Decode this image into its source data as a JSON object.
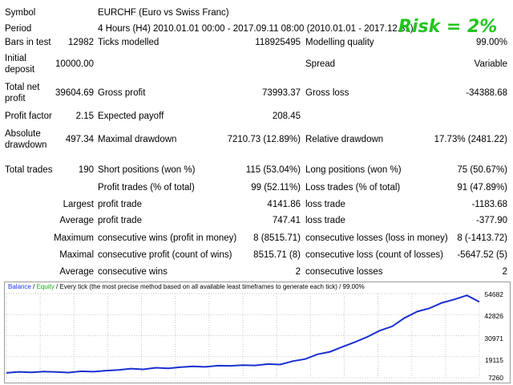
{
  "report": {
    "symbol": {
      "label": "Symbol",
      "value": "EURCHF (Euro vs Swiss Franc)"
    },
    "period": {
      "label": "Period",
      "value": "4 Hours (H4) 2010.01.01 00:00 - 2017.09.11 08:00 (2010.01.01 - 2017.12.31)"
    },
    "bars_in_test": {
      "label": "Bars in test",
      "value": "12982"
    },
    "ticks_modelled": {
      "label": "Ticks modelled",
      "value": "118925495"
    },
    "modelling_quality": {
      "label": "Modelling quality",
      "value": "99.00%"
    },
    "initial_deposit": {
      "label_line1": "Initial",
      "label_line2": "deposit",
      "value": "10000.00"
    },
    "spread": {
      "label": "Spread",
      "value": "Variable"
    },
    "total_net_profit": {
      "label_line1": "Total net",
      "label_line2": "profit",
      "value": "39604.69"
    },
    "gross_profit": {
      "label": "Gross profit",
      "value": "73993.37"
    },
    "gross_loss": {
      "label": "Gross loss",
      "value": "-34388.68"
    },
    "profit_factor": {
      "label": "Profit factor",
      "value": "2.15"
    },
    "expected_payoff": {
      "label": "Expected payoff",
      "value": "208.45"
    },
    "absolute_drawdown": {
      "label_line1": "Absolute",
      "label_line2": "drawdown",
      "value": "497.34"
    },
    "maximal_drawdown": {
      "label": "Maximal drawdown",
      "value": "7210.73 (12.89%)"
    },
    "relative_drawdown": {
      "label": "Relative drawdown",
      "value": "17.73% (2481.22)"
    },
    "total_trades": {
      "label": "Total trades",
      "value": "190"
    },
    "short_positions": {
      "label": "Short positions (won %)",
      "value": "115 (53.04%)"
    },
    "long_positions": {
      "label": "Long positions (won %)",
      "value": "75 (50.67%)"
    },
    "profit_trades": {
      "label": "Profit trades (% of total)",
      "value": "99 (52.11%)"
    },
    "loss_trades": {
      "label": "Loss trades (% of total)",
      "value": "91 (47.89%)"
    },
    "largest": {
      "label": "Largest",
      "profit_label": "profit trade",
      "profit_value": "4141.86",
      "loss_label": "loss trade",
      "loss_value": "-1183.68"
    },
    "average": {
      "label": "Average",
      "profit_label": "profit trade",
      "profit_value": "747.41",
      "loss_label": "loss trade",
      "loss_value": "-377.90"
    },
    "maximum": {
      "label": "Maximum",
      "wins_label": "consecutive wins (profit in money)",
      "wins_value": "8 (8515.71)",
      "losses_label": "consecutive losses (loss in money)",
      "losses_value": "8 (-1413.72)"
    },
    "maximal": {
      "label": "Maximal",
      "profit_label": "consecutive profit (count of wins)",
      "profit_value": "8515.71 (8)",
      "loss_label": "consecutive loss (count of losses)",
      "loss_value": "-5647.52 (5)"
    },
    "average_consecutive": {
      "label": "Average",
      "wins_label": "consecutive wins",
      "wins_value": "2",
      "losses_label": "consecutive losses",
      "losses_value": "2"
    }
  },
  "risk_label": "Risk = 2%",
  "chart_legend": {
    "balance": "Balance",
    "sep1": " / ",
    "equity": "Equity",
    "rest": " / Every tick (the most precise method based on all available least timeframes to generate each tick) / 99.00%"
  },
  "colors": {
    "balance_line": "#1a2fd0",
    "grid": "#c8c8c8",
    "risk_text": "#22c51e"
  },
  "chart_data": {
    "type": "line",
    "title": "",
    "xlabel": "",
    "ylabel": "",
    "y_tick_labels": [
      "54682",
      "42826",
      "30971",
      "19115",
      "7260"
    ],
    "ylim": [
      7260,
      54682
    ],
    "series": [
      {
        "name": "Balance",
        "x": [
          0,
          5,
          10,
          15,
          20,
          25,
          30,
          35,
          40,
          45,
          50,
          55,
          60,
          65,
          70,
          75,
          80,
          85,
          90,
          95,
          100,
          105,
          110,
          115,
          120,
          125,
          130,
          135,
          140,
          145,
          150,
          155,
          160,
          165,
          170,
          175,
          180,
          185,
          190
        ],
        "values": [
          10000,
          10600,
          10300,
          10800,
          10500,
          10200,
          10900,
          10700,
          11300,
          11700,
          12400,
          12000,
          12900,
          12600,
          13200,
          13700,
          13400,
          14100,
          14000,
          14400,
          14200,
          15000,
          14700,
          16600,
          17800,
          20500,
          21900,
          24700,
          27300,
          30300,
          33800,
          36200,
          41000,
          44500,
          46400,
          49500,
          51400,
          53700,
          50000
        ]
      }
    ],
    "grid": true,
    "legend": "top-left"
  }
}
